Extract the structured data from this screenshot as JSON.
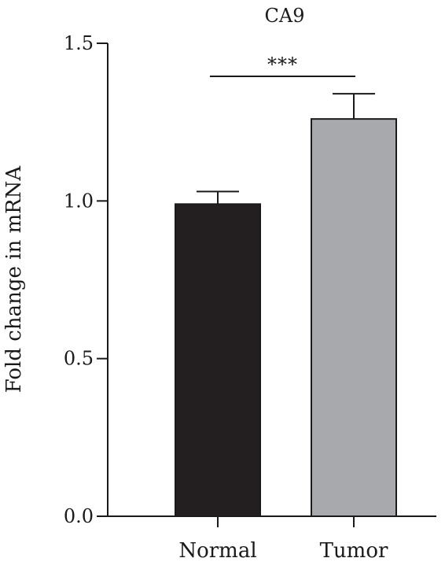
{
  "chart_data": {
    "type": "bar",
    "title": "CA9",
    "xlabel": "",
    "ylabel": "Fold change in mRNA",
    "categories": [
      "Normal",
      "Tumor"
    ],
    "values": [
      0.99,
      1.26
    ],
    "errors": [
      0.04,
      0.08
    ],
    "ylim": [
      0,
      1.5
    ],
    "yticks": [
      0.0,
      0.5,
      1.0,
      1.5
    ],
    "ytick_labels": [
      "0.0",
      "0.5",
      "1.0",
      "1.5"
    ],
    "bar_colors": [
      "#231f20",
      "#a7a9ac"
    ],
    "grid": false,
    "legend": "none",
    "significance": {
      "between": [
        "Normal",
        "Tumor"
      ],
      "label": "***"
    }
  }
}
